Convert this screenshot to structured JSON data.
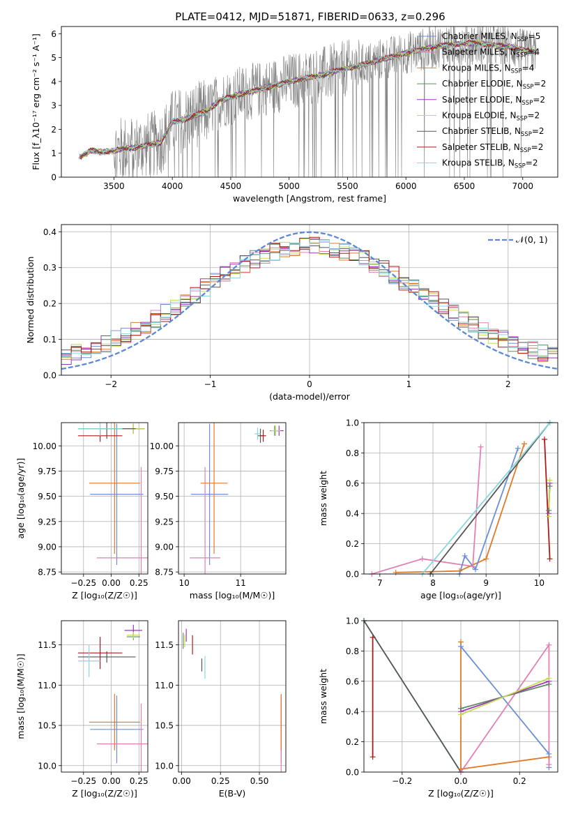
{
  "title": "PLATE=0412, MJD=51871, FIBERID=0633, z=0.296",
  "colors": {
    "chabrier_miles": "#6a8fd6",
    "salpeter_miles": "#e27fb5",
    "kroupa_miles": "#e07a26",
    "chabrier_elodie": "#5e8c64",
    "salpeter_elodie": "#9b34b8",
    "kroupa_elodie": "#c3dc4e",
    "chabrier_stelib": "#555555",
    "salpeter_stelib": "#b01818",
    "kroupa_stelib": "#86d8dc",
    "normal_curve": "#5b87d6",
    "data": "#808080"
  },
  "chart_data": [
    {
      "id": "spectrum",
      "type": "line",
      "title": "PLATE=0412, MJD=51871, FIBERID=0633, z=0.296",
      "xlabel": "wavelength [Angstrom, rest frame]",
      "ylabel": "Flux [f_λ10⁻¹⁷ erg cm⁻² s⁻¹ A⁻¹]",
      "xlim": [
        3050,
        7300
      ],
      "ylim": [
        0,
        6.3
      ],
      "xticks": [
        "3500",
        "4000",
        "4500",
        "5000",
        "5500",
        "6000",
        "6500",
        "7000"
      ],
      "yticks": [
        "0",
        "1",
        "2",
        "3",
        "4",
        "5",
        "6"
      ],
      "grid": false,
      "legend_position": "upper right",
      "legend": [
        {
          "key": "chabrier_miles",
          "label": "Chabrier MILES, N",
          "sub": "SSP",
          "suffix": "=5"
        },
        {
          "key": "salpeter_miles",
          "label": "Salpeter MILES, N",
          "sub": "SSP",
          "suffix": "=4"
        },
        {
          "key": "kroupa_miles",
          "label": "Kroupa MILES, N",
          "sub": "SSP",
          "suffix": "=4"
        },
        {
          "key": "chabrier_elodie",
          "label": "Chabrier ELODIE, N",
          "sub": "SSP",
          "suffix": "=2"
        },
        {
          "key": "salpeter_elodie",
          "label": "Salpeter ELODIE, N",
          "sub": "SSP",
          "suffix": "=2"
        },
        {
          "key": "kroupa_elodie",
          "label": "Kroupa ELODIE, N",
          "sub": "SSP",
          "suffix": "=2"
        },
        {
          "key": "chabrier_stelib",
          "label": "Chabrier STELIB, N",
          "sub": "SSP",
          "suffix": "=2"
        },
        {
          "key": "salpeter_stelib",
          "label": "Salpeter STELIB, N",
          "sub": "SSP",
          "suffix": "=2"
        },
        {
          "key": "kroupa_stelib",
          "label": "Kroupa STELIB, N",
          "sub": "SSP",
          "suffix": "=2"
        }
      ],
      "continuum": {
        "x": [
          3200,
          3300,
          3400,
          3500,
          3600,
          3700,
          3800,
          3900,
          4000,
          4100,
          4200,
          4300,
          4400,
          4500,
          4600,
          4700,
          4800,
          4900,
          5000,
          5100,
          5200,
          5300,
          5400,
          5500,
          5600,
          5700,
          5800,
          5900,
          6000,
          6100,
          6200,
          6300,
          6400,
          6500,
          6600,
          6700,
          6800,
          6900,
          7000,
          7100
        ],
        "y": [
          0.8,
          1.1,
          1.05,
          1.1,
          1.2,
          1.25,
          1.35,
          1.45,
          2.3,
          2.4,
          2.6,
          2.75,
          3.2,
          3.35,
          3.5,
          3.6,
          3.75,
          3.85,
          4.0,
          4.1,
          4.2,
          4.3,
          4.45,
          4.55,
          4.65,
          4.8,
          4.95,
          5.05,
          5.2,
          5.3,
          5.4,
          5.5,
          5.55,
          5.6,
          5.6,
          5.55,
          5.5,
          5.45,
          5.3,
          5.25
        ]
      }
    },
    {
      "id": "residuals",
      "type": "line",
      "xlabel": "(data-model)/error",
      "ylabel": "Normed distribution",
      "xlim": [
        -2.5,
        2.5
      ],
      "ylim": [
        0,
        0.42
      ],
      "xticks": [
        "−2",
        "−1",
        "0",
        "1",
        "2"
      ],
      "yticks": [
        "0.0",
        "0.1",
        "0.2",
        "0.3",
        "0.4"
      ],
      "grid": true,
      "legend_position": "upper right",
      "legend": [
        "𝒩(0, 1)"
      ],
      "normal": {
        "mean": 0,
        "sigma": 1
      },
      "histogram_bins": {
        "start": -2.5,
        "width": 0.1,
        "count": 50
      }
    },
    {
      "id": "age_vs_Z",
      "type": "scatter",
      "xlabel": "Z [log₁₀(Z/Z☉)]",
      "ylabel": "age  [log₁₀(age/yr)]",
      "xlim": [
        -0.45,
        0.33
      ],
      "ylim": [
        8.73,
        10.23
      ],
      "xticks": [
        "−0.25",
        "0.00",
        "0.25"
      ],
      "yticks": [
        "8.75",
        "9.00",
        "9.25",
        "9.50",
        "9.75",
        "10.00"
      ],
      "grid": true,
      "points": [
        {
          "key": "chabrier_miles",
          "x": 0.05,
          "xerr": 0.24,
          "y": 9.52,
          "yerr": 0.7
        },
        {
          "key": "salpeter_miles",
          "x": 0.27,
          "xerr": 0.4,
          "y": 8.89,
          "yerr": 0.9
        },
        {
          "key": "kroupa_miles",
          "x": 0.03,
          "xerr": 0.23,
          "y": 9.63,
          "yerr": 0.7
        },
        {
          "key": "chabrier_elodie",
          "x": 0.2,
          "xerr": 0.1,
          "y": 10.17,
          "yerr": 0.05
        },
        {
          "key": "salpeter_elodie",
          "x": 0.2,
          "xerr": 0.1,
          "y": 10.17,
          "yerr": 0.05
        },
        {
          "key": "kroupa_elodie",
          "x": 0.2,
          "xerr": 0.1,
          "y": 10.17,
          "yerr": 0.05
        },
        {
          "key": "chabrier_stelib",
          "x": -0.04,
          "xerr": 0.26,
          "y": 10.17,
          "yerr": 0.1
        },
        {
          "key": "salpeter_stelib",
          "x": -0.1,
          "xerr": 0.2,
          "y": 10.1,
          "yerr": 0.06
        },
        {
          "key": "kroupa_stelib",
          "x": -0.1,
          "xerr": 0.2,
          "y": 10.17,
          "yerr": 0.07
        }
      ]
    },
    {
      "id": "age_vs_mass",
      "type": "scatter",
      "xlabel": "mass [log₁₀(M/M☉)]",
      "xlim": [
        9.9,
        11.8
      ],
      "ylim": [
        8.73,
        10.23
      ],
      "xticks": [
        "10",
        "11"
      ],
      "yticks": [
        "8.75",
        "9.00",
        "9.25",
        "9.50",
        "9.75",
        "10.00"
      ],
      "grid": true,
      "points": [
        {
          "key": "chabrier_miles",
          "x": 10.45,
          "xerr": 0.33,
          "y": 9.52,
          "yerr": 0.7
        },
        {
          "key": "salpeter_miles",
          "x": 10.37,
          "xerr": 0.27,
          "y": 8.89,
          "yerr": 0.9
        },
        {
          "key": "kroupa_miles",
          "x": 10.53,
          "xerr": 0.24,
          "y": 9.63,
          "yerr": 0.7
        },
        {
          "key": "chabrier_elodie",
          "x": 11.6,
          "xerr": 0.08,
          "y": 10.15,
          "yerr": 0.05
        },
        {
          "key": "salpeter_elodie",
          "x": 11.68,
          "xerr": 0.08,
          "y": 10.15,
          "yerr": 0.05
        },
        {
          "key": "kroupa_elodie",
          "x": 11.62,
          "xerr": 0.08,
          "y": 10.15,
          "yerr": 0.05
        },
        {
          "key": "chabrier_stelib",
          "x": 11.35,
          "xerr": 0.05,
          "y": 10.1,
          "yerr": 0.07
        },
        {
          "key": "salpeter_stelib",
          "x": 11.4,
          "xerr": 0.05,
          "y": 10.1,
          "yerr": 0.06
        },
        {
          "key": "kroupa_stelib",
          "x": 11.3,
          "xerr": 0.05,
          "y": 10.12,
          "yerr": 0.06
        }
      ]
    },
    {
      "id": "weight_vs_age",
      "type": "line",
      "xlabel": "age  [log₁₀(age/yr)]",
      "ylabel": "mass weight",
      "xlim": [
        6.7,
        10.35
      ],
      "ylim": [
        0,
        1.0
      ],
      "xticks": [
        "7",
        "8",
        "9",
        "10"
      ],
      "yticks": [
        "0.0",
        "0.2",
        "0.4",
        "0.6",
        "0.8",
        "1.0"
      ],
      "grid": true,
      "series": [
        {
          "key": "salpeter_miles",
          "x": [
            6.85,
            7.8,
            8.75,
            8.9
          ],
          "y": [
            0.0,
            0.1,
            0.05,
            0.84
          ]
        },
        {
          "key": "kroupa_miles",
          "x": [
            7.3,
            8.5,
            9.0,
            9.72
          ],
          "y": [
            0.01,
            0.02,
            0.1,
            0.86
          ]
        },
        {
          "key": "chabrier_miles",
          "x": [
            8.5,
            8.6,
            8.8,
            9.6
          ],
          "y": [
            0.0,
            0.12,
            0.03,
            0.83
          ]
        },
        {
          "key": "chabrier_stelib",
          "x": [
            7.95,
            10.2
          ],
          "y": [
            0.0,
            1.0
          ]
        },
        {
          "key": "kroupa_stelib",
          "x": [
            7.8,
            10.2
          ],
          "y": [
            0.0,
            1.0
          ]
        },
        {
          "key": "salpeter_stelib",
          "x": [
            10.1,
            10.2
          ],
          "y": [
            0.89,
            0.1
          ]
        },
        {
          "key": "chabrier_elodie",
          "x": [
            10.18,
            10.2
          ],
          "y": [
            0.42,
            0.58
          ]
        },
        {
          "key": "salpeter_elodie",
          "x": [
            10.18,
            10.2
          ],
          "y": [
            0.4,
            0.6
          ]
        },
        {
          "key": "kroupa_elodie",
          "x": [
            10.18,
            10.2
          ],
          "y": [
            0.38,
            0.62
          ]
        }
      ]
    },
    {
      "id": "mass_vs_Z",
      "type": "scatter",
      "xlabel": "Z [log₁₀(Z/Z☉)]",
      "ylabel": "mass [log₁₀(M/M☉)]",
      "xlim": [
        -0.45,
        0.33
      ],
      "ylim": [
        9.92,
        11.8
      ],
      "xticks": [
        "−0.25",
        "0.00",
        "0.25"
      ],
      "yticks": [
        "10.0",
        "10.5",
        "11.0",
        "11.5"
      ],
      "grid": true,
      "points": [
        {
          "key": "chabrier_miles",
          "x": 0.05,
          "xerr": 0.24,
          "y": 10.45,
          "yerr": 0.42
        },
        {
          "key": "salpeter_miles",
          "x": 0.27,
          "xerr": 0.4,
          "y": 10.27,
          "yerr": 0.5
        },
        {
          "key": "kroupa_miles",
          "x": 0.03,
          "xerr": 0.23,
          "y": 10.54,
          "yerr": 0.35
        },
        {
          "key": "chabrier_elodie",
          "x": 0.2,
          "xerr": 0.06,
          "y": 11.6,
          "yerr": 0.04
        },
        {
          "key": "salpeter_elodie",
          "x": 0.2,
          "xerr": 0.08,
          "y": 11.68,
          "yerr": 0.07
        },
        {
          "key": "kroupa_elodie",
          "x": 0.2,
          "xerr": 0.06,
          "y": 11.62,
          "yerr": 0.04
        },
        {
          "key": "chabrier_stelib",
          "x": -0.04,
          "xerr": 0.26,
          "y": 11.35,
          "yerr": 0.07
        },
        {
          "key": "salpeter_stelib",
          "x": -0.1,
          "xerr": 0.2,
          "y": 11.4,
          "yerr": 0.2
        },
        {
          "key": "kroupa_stelib",
          "x": -0.2,
          "xerr": 0.1,
          "y": 11.3,
          "yerr": 0.2
        }
      ]
    },
    {
      "id": "mass_vs_ebv",
      "type": "scatter",
      "xlabel": "E(B-V)",
      "xlim": [
        -0.02,
        0.67
      ],
      "ylim": [
        9.92,
        11.8
      ],
      "xticks": [
        "0.00",
        "0.25",
        "0.50"
      ],
      "yticks": [
        "10.0",
        "10.5",
        "11.0",
        "11.5"
      ],
      "grid": true,
      "points": [
        {
          "key": "chabrier_miles",
          "x": 0.64,
          "xerr": 0,
          "y": 10.45,
          "yerr": 0.42
        },
        {
          "key": "salpeter_miles",
          "x": 0.64,
          "xerr": 0,
          "y": 10.27,
          "yerr": 0.5
        },
        {
          "key": "kroupa_miles",
          "x": 0.64,
          "xerr": 0,
          "y": 10.54,
          "yerr": 0.35
        },
        {
          "key": "chabrier_elodie",
          "x": 0.01,
          "xerr": 0,
          "y": 11.55,
          "yerr": 0.1
        },
        {
          "key": "salpeter_elodie",
          "x": 0.03,
          "xerr": 0,
          "y": 11.62,
          "yerr": 0.08
        },
        {
          "key": "kroupa_elodie",
          "x": 0.02,
          "xerr": 0,
          "y": 11.55,
          "yerr": 0.08
        },
        {
          "key": "chabrier_stelib",
          "x": 0.13,
          "xerr": 0,
          "y": 11.25,
          "yerr": 0.08
        },
        {
          "key": "salpeter_stelib",
          "x": 0.07,
          "xerr": 0,
          "y": 11.5,
          "yerr": 0.12
        },
        {
          "key": "kroupa_stelib",
          "x": 0.15,
          "xerr": 0,
          "y": 11.22,
          "yerr": 0.14
        }
      ]
    },
    {
      "id": "weight_vs_Z",
      "type": "line",
      "xlabel": "Z [log₁₀(Z/Z☉)]",
      "ylabel": "mass weight",
      "xlim": [
        -0.33,
        0.33
      ],
      "ylim": [
        0,
        1.0
      ],
      "xticks": [
        "−0.2",
        "0.0",
        "0.2"
      ],
      "yticks": [
        "0.0",
        "0.2",
        "0.4",
        "0.6",
        "0.8",
        "1.0"
      ],
      "grid": true,
      "series": [
        {
          "key": "salpeter_stelib",
          "x": [
            -0.3,
            -0.3
          ],
          "y": [
            0.89,
            0.1
          ]
        },
        {
          "key": "kroupa_stelib",
          "x": [
            -0.33,
            0.0
          ],
          "y": [
            1.0,
            0.0
          ]
        },
        {
          "key": "chabrier_stelib",
          "x": [
            -0.33,
            0.0
          ],
          "y": [
            1.0,
            0.0
          ]
        },
        {
          "key": "kroupa_miles",
          "x": [
            0.0,
            0.0,
            0.3
          ],
          "y": [
            0.86,
            0.02,
            0.1
          ]
        },
        {
          "key": "chabrier_miles",
          "x": [
            0.0,
            0.3,
            0.3
          ],
          "y": [
            0.83,
            0.12,
            0.03
          ]
        },
        {
          "key": "salpeter_miles",
          "x": [
            0.0,
            0.3,
            0.3
          ],
          "y": [
            0.0,
            0.84,
            0.05
          ]
        },
        {
          "key": "chabrier_elodie",
          "x": [
            0.0,
            0.3
          ],
          "y": [
            0.42,
            0.58
          ]
        },
        {
          "key": "salpeter_elodie",
          "x": [
            0.0,
            0.3
          ],
          "y": [
            0.4,
            0.6
          ]
        },
        {
          "key": "kroupa_elodie",
          "x": [
            0.0,
            0.3
          ],
          "y": [
            0.38,
            0.62
          ]
        }
      ]
    }
  ]
}
